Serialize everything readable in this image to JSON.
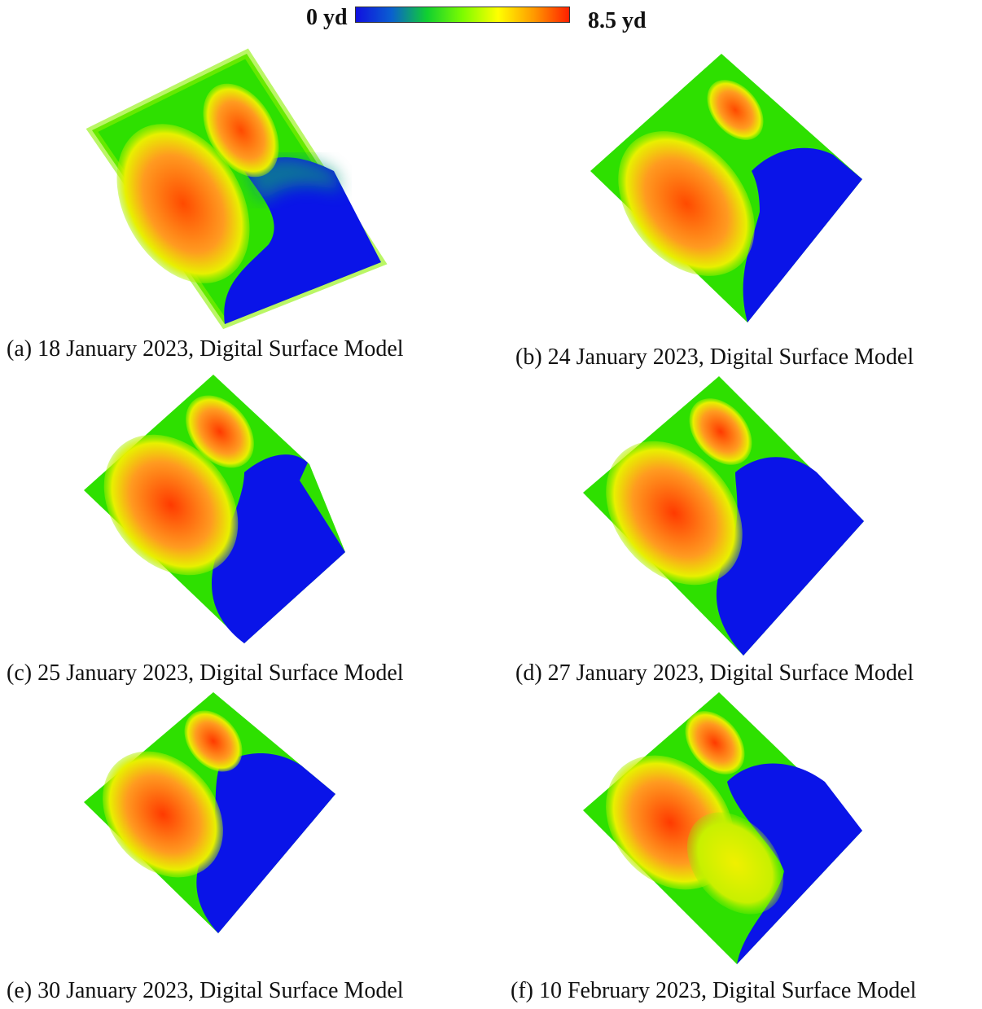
{
  "colorbar": {
    "min_label": "0 yd",
    "max_label": "8.5 yd",
    "stops": [
      "#1010e0",
      "#0a5fd0",
      "#10d030",
      "#7cfc00",
      "#ffff00",
      "#ff9a00",
      "#ff2000"
    ]
  },
  "panels": [
    {
      "caption": "(a) 18 January 2023, Digital Surface Model"
    },
    {
      "caption": "(b) 24 January 2023, Digital Surface Model"
    },
    {
      "caption": "(c) 25 January 2023, Digital Surface Model"
    },
    {
      "caption": "(d) 27 January 2023, Digital Surface Model"
    },
    {
      "caption": "(e) 30 January 2023, Digital Surface Model"
    },
    {
      "caption": "(f) 10 February 2023, Digital Surface Model"
    }
  ],
  "colors": {
    "ground": "#2ee000",
    "ground_edge": "#7cf000",
    "pile_outer": "#e8f000",
    "pile_mid": "#ff9a20",
    "pile_core": "#ff3a00",
    "water": "#0a14e8",
    "water_edge": "#0a9a7a"
  }
}
